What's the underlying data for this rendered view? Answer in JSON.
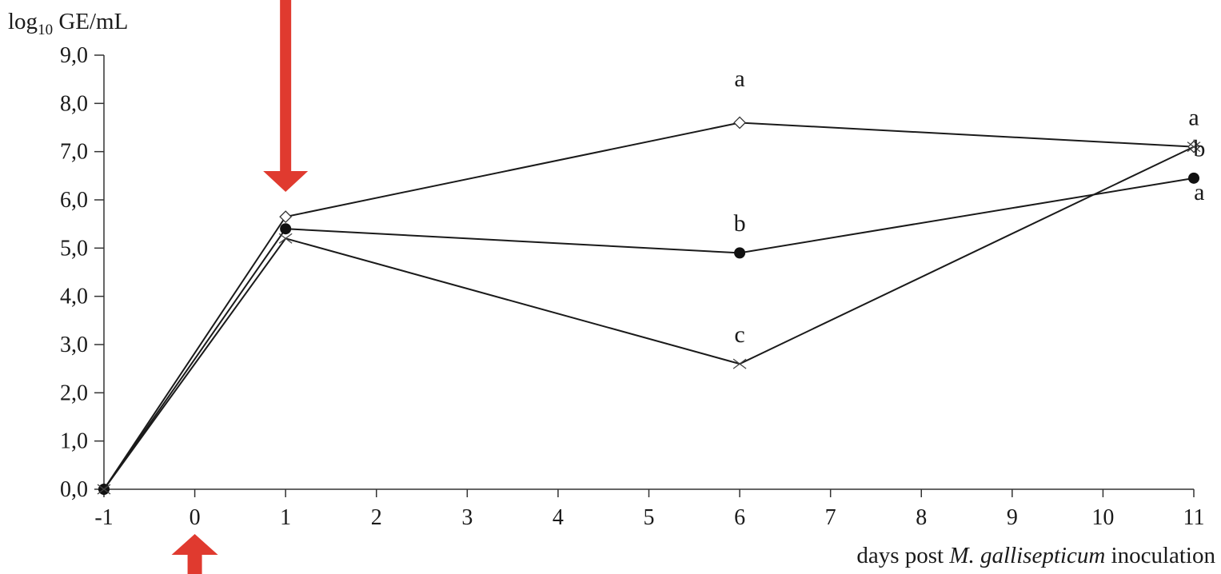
{
  "chart_data": {
    "type": "line",
    "title": "",
    "ylabel_main": "log",
    "ylabel_sub": "10",
    "ylabel_rest": " GE/mL",
    "xlabel_pre": "days post ",
    "xlabel_italic": "M. gallisepticum",
    "xlabel_post": " inoculation",
    "ylim": [
      0,
      9
    ],
    "xlim": [
      -1,
      11
    ],
    "y_ticks": [
      0,
      1,
      2,
      3,
      4,
      5,
      6,
      7,
      8,
      9
    ],
    "y_tick_labels": [
      "0,0",
      "1,0",
      "2,0",
      "3,0",
      "4,0",
      "5,0",
      "6,0",
      "7,0",
      "8,0",
      "9,0"
    ],
    "x_ticks": [
      -1,
      0,
      1,
      2,
      3,
      4,
      5,
      6,
      7,
      8,
      9,
      10,
      11
    ],
    "x_tick_labels": [
      "-1",
      "0",
      "1",
      "2",
      "3",
      "4",
      "5",
      "6",
      "7",
      "8",
      "9",
      "10",
      "11"
    ],
    "grid": false,
    "legend": "none",
    "series": [
      {
        "marker": "diamond-open",
        "x": [
          -1,
          1,
          6,
          11
        ],
        "y": [
          0,
          5.65,
          7.6,
          7.1
        ]
      },
      {
        "marker": "circle-filled",
        "x": [
          -1,
          1,
          6,
          11
        ],
        "y": [
          0,
          5.4,
          4.9,
          6.45
        ]
      },
      {
        "marker": "cross",
        "x": [
          -1,
          1,
          6,
          11
        ],
        "y": [
          0,
          5.2,
          2.6,
          7.1
        ]
      }
    ],
    "annotations": [
      {
        "text": "a",
        "x": 6,
        "y": 8.35
      },
      {
        "text": "b",
        "x": 6,
        "y": 5.35
      },
      {
        "text": "c",
        "x": 6,
        "y": 3.05
      },
      {
        "text": "a",
        "x": 11,
        "y": 7.55
      },
      {
        "text": "b",
        "x": 11.06,
        "y": 6.9
      },
      {
        "text": "a",
        "x": 11.06,
        "y": 6.0
      }
    ],
    "arrows": [
      {
        "direction": "down",
        "x": 1,
        "color": "#e03a2f"
      },
      {
        "direction": "up",
        "x": 0,
        "color": "#e03a2f"
      }
    ]
  }
}
